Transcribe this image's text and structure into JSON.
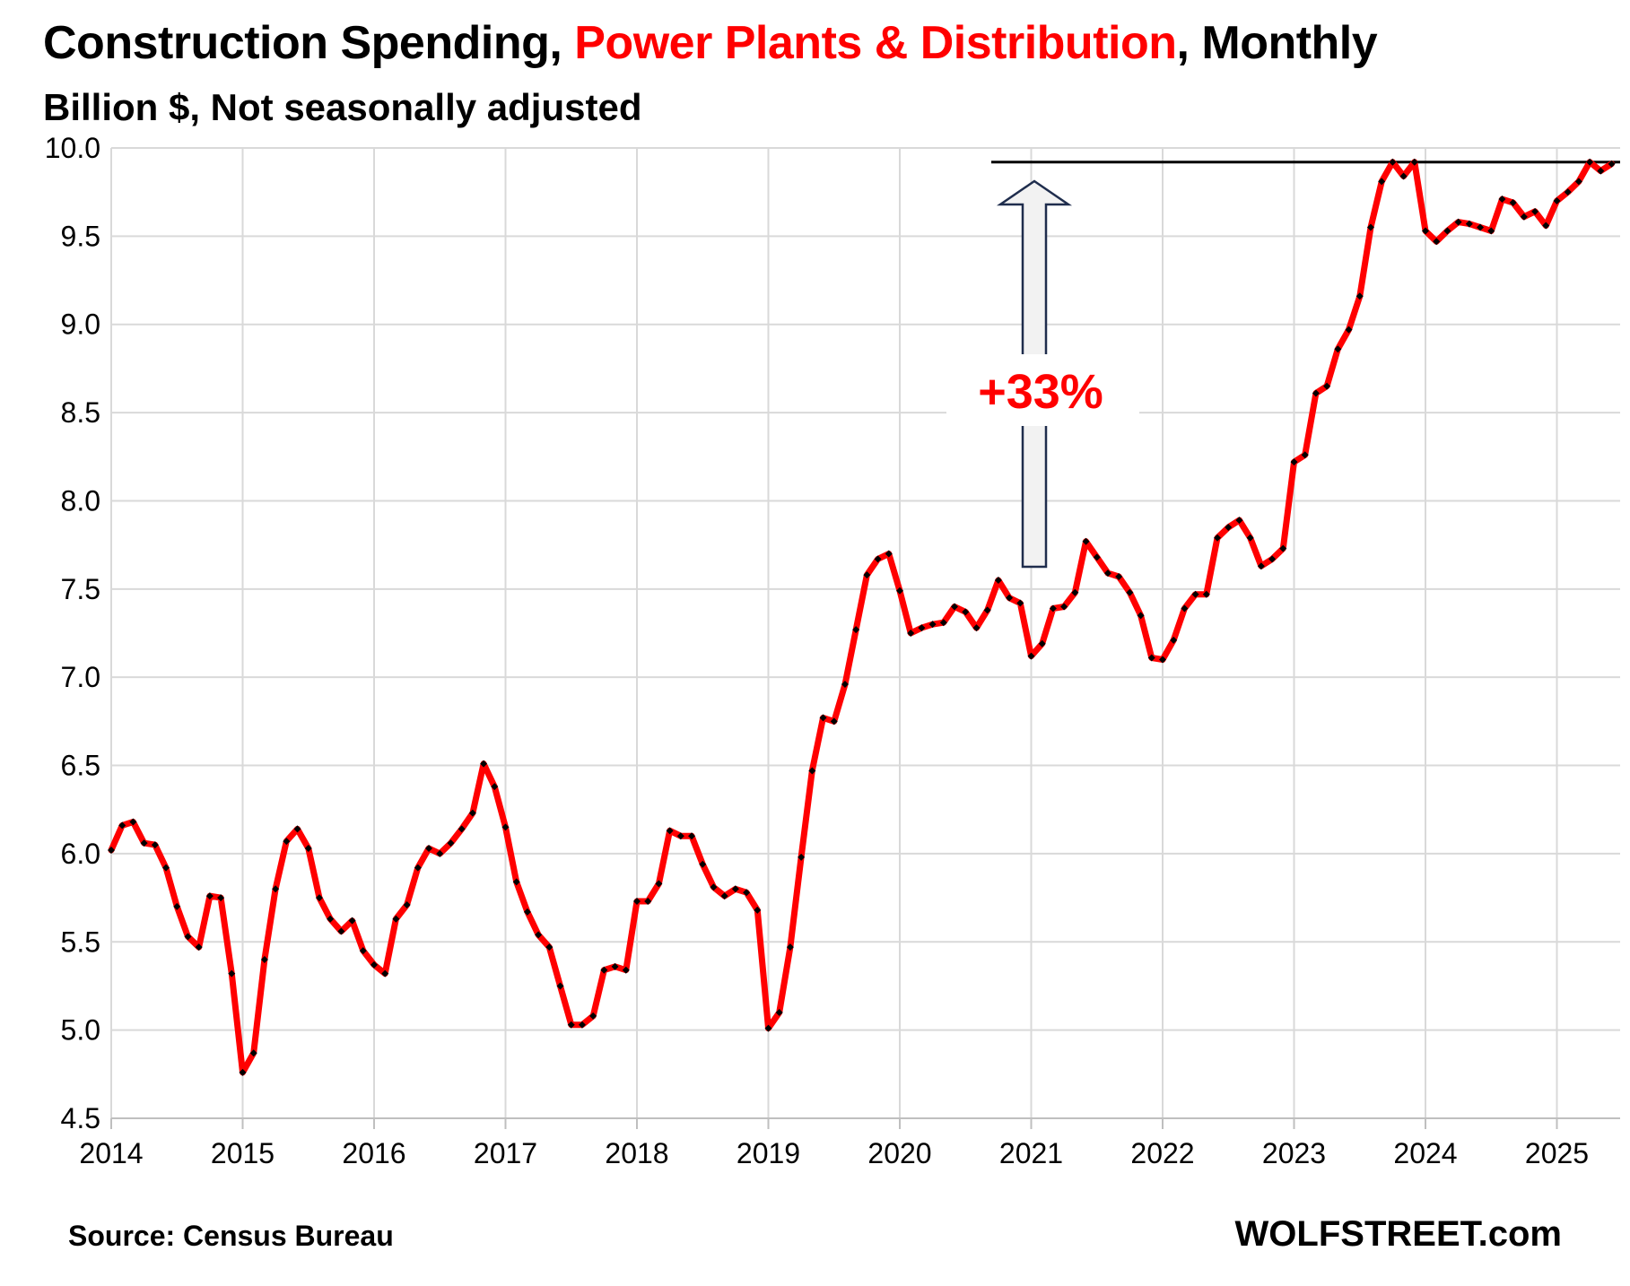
{
  "chart_data": {
    "type": "line",
    "title_parts": [
      "Construction Spending, ",
      "Power Plants & Distribution",
      ", Monthly"
    ],
    "subtitle": "Billion $, Not seasonally adjusted",
    "source": "Source: Census Bureau",
    "brand": "WOLFSTREET.com",
    "annotation": "+33%",
    "ylim": [
      4.5,
      10.0
    ],
    "yticks": [
      "10.0",
      "9.5",
      "9.0",
      "8.5",
      "8.0",
      "7.5",
      "7.0",
      "6.5",
      "6.0",
      "5.5",
      "5.0",
      "4.5"
    ],
    "xticks": [
      "2014",
      "2015",
      "2016",
      "2017",
      "2018",
      "2019",
      "2020",
      "2021",
      "2022",
      "2023",
      "2024",
      "2025"
    ],
    "x_start": "2014-01",
    "reference_line": 9.92,
    "grid": true,
    "series": [
      {
        "color": "#ff0000",
        "marker_color": "#000000",
        "values": [
          6.02,
          6.16,
          6.18,
          6.06,
          6.05,
          5.92,
          5.7,
          5.53,
          5.47,
          5.76,
          5.75,
          5.32,
          4.76,
          4.87,
          5.4,
          5.8,
          6.07,
          6.14,
          6.03,
          5.75,
          5.63,
          5.56,
          5.62,
          5.45,
          5.37,
          5.32,
          5.63,
          5.71,
          5.92,
          6.03,
          6.0,
          6.06,
          6.14,
          6.23,
          6.51,
          6.38,
          6.15,
          5.84,
          5.67,
          5.54,
          5.47,
          5.25,
          5.03,
          5.03,
          5.08,
          5.34,
          5.36,
          5.34,
          5.73,
          5.73,
          5.83,
          6.13,
          6.1,
          6.1,
          5.94,
          5.81,
          5.76,
          5.8,
          5.78,
          5.68,
          5.01,
          5.1,
          5.47,
          5.98,
          6.47,
          6.77,
          6.75,
          6.96,
          7.27,
          7.58,
          7.67,
          7.7,
          7.49,
          7.25,
          7.28,
          7.3,
          7.31,
          7.4,
          7.37,
          7.28,
          7.38,
          7.55,
          7.45,
          7.42,
          7.12,
          7.19,
          7.39,
          7.4,
          7.48,
          7.77,
          7.68,
          7.59,
          7.57,
          7.48,
          7.35,
          7.11,
          7.1,
          7.21,
          7.39,
          7.47,
          7.47,
          7.79,
          7.85,
          7.89,
          7.79,
          7.63,
          7.67,
          7.73,
          8.22,
          8.26,
          8.61,
          8.65,
          8.86,
          8.97,
          9.16,
          9.55,
          9.81,
          9.92,
          9.84,
          9.92,
          9.53,
          9.47,
          9.53,
          9.58,
          9.57,
          9.55,
          9.53,
          9.71,
          9.69,
          9.61,
          9.64,
          9.56,
          9.7,
          9.75,
          9.81,
          9.92,
          9.87,
          9.91
        ]
      }
    ]
  }
}
